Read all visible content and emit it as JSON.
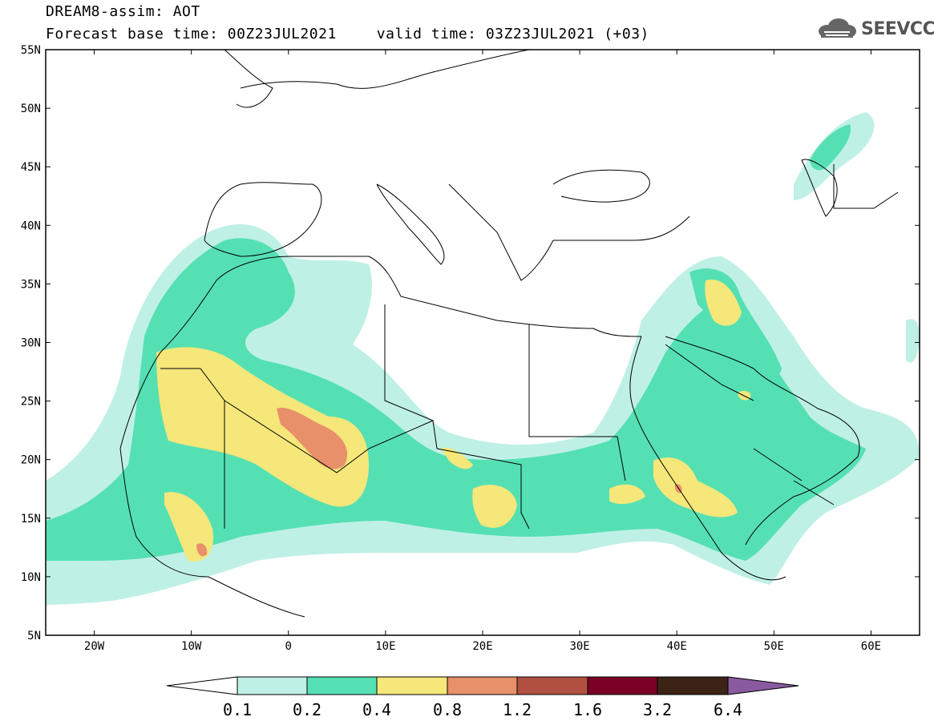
{
  "header": {
    "model_title": "DREAM8-assim: AOT",
    "base_time": "Forecast base time: 00Z23JUL2021",
    "valid_time": "valid time: 03Z23JUL2021 (+03)"
  },
  "logo": {
    "text": "SEEVCCC",
    "icon": "cloud-logo-icon"
  },
  "map": {
    "region": "Northern Africa / Middle East / Europe",
    "lat_labels": [
      "55N",
      "50N",
      "45N",
      "40N",
      "35N",
      "30N",
      "25N",
      "20N",
      "15N",
      "10N",
      "5N"
    ],
    "lon_labels": [
      "20W",
      "10W",
      "0",
      "10E",
      "20E",
      "30E",
      "40E",
      "50E",
      "60E"
    ],
    "lon_range": [
      -25,
      65
    ],
    "lat_range": [
      5,
      55
    ]
  },
  "colorbar": {
    "labels": [
      "0.1",
      "0.2",
      "0.4",
      "0.8",
      "1.2",
      "1.6",
      "3.2",
      "6.4"
    ],
    "colors": [
      "#ffffff",
      "#bff0e6",
      "#55e0b3",
      "#f5e77a",
      "#e8906a",
      "#b05040",
      "#7a0025",
      "#3b2416",
      "#8a5aa0"
    ]
  }
}
